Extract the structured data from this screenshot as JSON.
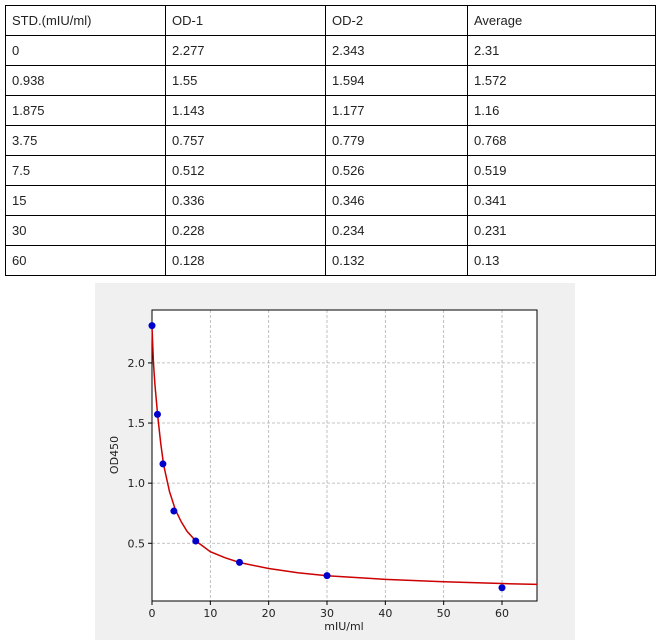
{
  "table": {
    "header": [
      "STD.(mIU/ml)",
      "OD-1",
      "OD-2",
      "Average"
    ],
    "rows": [
      [
        "0",
        "2.277",
        "2.343",
        "2.31"
      ],
      [
        "0.938",
        "1.55",
        "1.594",
        "1.572"
      ],
      [
        "1.875",
        "1.143",
        "1.177",
        "1.16"
      ],
      [
        "3.75",
        "0.757",
        "0.779",
        "0.768"
      ],
      [
        "7.5",
        "0.512",
        "0.526",
        "0.519"
      ],
      [
        "15",
        "0.336",
        "0.346",
        "0.341"
      ],
      [
        "30",
        "0.228",
        "0.234",
        "0.231"
      ],
      [
        "60",
        "0.128",
        "0.132",
        "0.13"
      ]
    ]
  },
  "chart_data": {
    "type": "scatter",
    "xlabel": "mIU/ml",
    "ylabel": "OD450",
    "x": [
      0,
      0.938,
      1.875,
      3.75,
      7.5,
      15,
      30,
      60
    ],
    "values": [
      2.31,
      1.572,
      1.16,
      0.768,
      0.519,
      0.341,
      0.231,
      0.13
    ],
    "color": "#0000cc",
    "curve": {
      "color": "#cc0000",
      "x": [
        0,
        0.25,
        0.5,
        1,
        1.5,
        2,
        3,
        4,
        5,
        6,
        7.5,
        10,
        12.5,
        15,
        20,
        25,
        30,
        40,
        50,
        60,
        66
      ],
      "values": [
        2.3,
        2.0,
        1.82,
        1.55,
        1.33,
        1.15,
        0.93,
        0.78,
        0.68,
        0.6,
        0.52,
        0.43,
        0.38,
        0.34,
        0.29,
        0.255,
        0.23,
        0.2,
        0.18,
        0.165,
        0.158
      ]
    },
    "xlim": [
      0,
      66
    ],
    "ylim": [
      0.02,
      2.44
    ],
    "xticks": [
      0,
      10,
      20,
      30,
      40,
      50,
      60
    ],
    "yticks": [
      0.5,
      {
        "value": 1,
        "label": "1.0"
      },
      1.5,
      {
        "value": 2,
        "label": "2.0"
      }
    ],
    "grid": true
  }
}
